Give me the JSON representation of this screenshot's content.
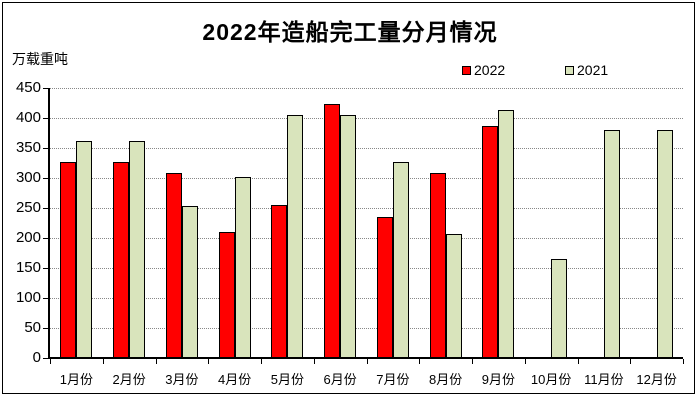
{
  "title": "2022年造船完工量分月情况",
  "y_axis_unit": "万载重吨",
  "legend": [
    {
      "label": "2022",
      "color": "#FF0000"
    },
    {
      "label": "2021",
      "color": "#D9E4BC"
    }
  ],
  "chart_data": {
    "type": "bar",
    "title": "2022年造船完工量分月情况",
    "ylabel": "万载重吨",
    "xlabel": "",
    "ylim": [
      0,
      450
    ],
    "ytick_step": 50,
    "grid": "horizontal-dotted",
    "legend_position": "top",
    "categories": [
      "1月份",
      "2月份",
      "3月份",
      "4月份",
      "5月份",
      "6月份",
      "7月份",
      "8月份",
      "9月份",
      "10月份",
      "11月份",
      "12月份"
    ],
    "series": [
      {
        "name": "2022",
        "color": "#FF0000",
        "values": [
          326,
          326,
          308,
          210,
          255,
          424,
          235,
          309,
          386,
          null,
          null,
          null
        ]
      },
      {
        "name": "2021",
        "color": "#D9E4BC",
        "values": [
          361,
          361,
          254,
          301,
          405,
          405,
          327,
          207,
          414,
          165,
          380,
          380
        ]
      }
    ]
  }
}
